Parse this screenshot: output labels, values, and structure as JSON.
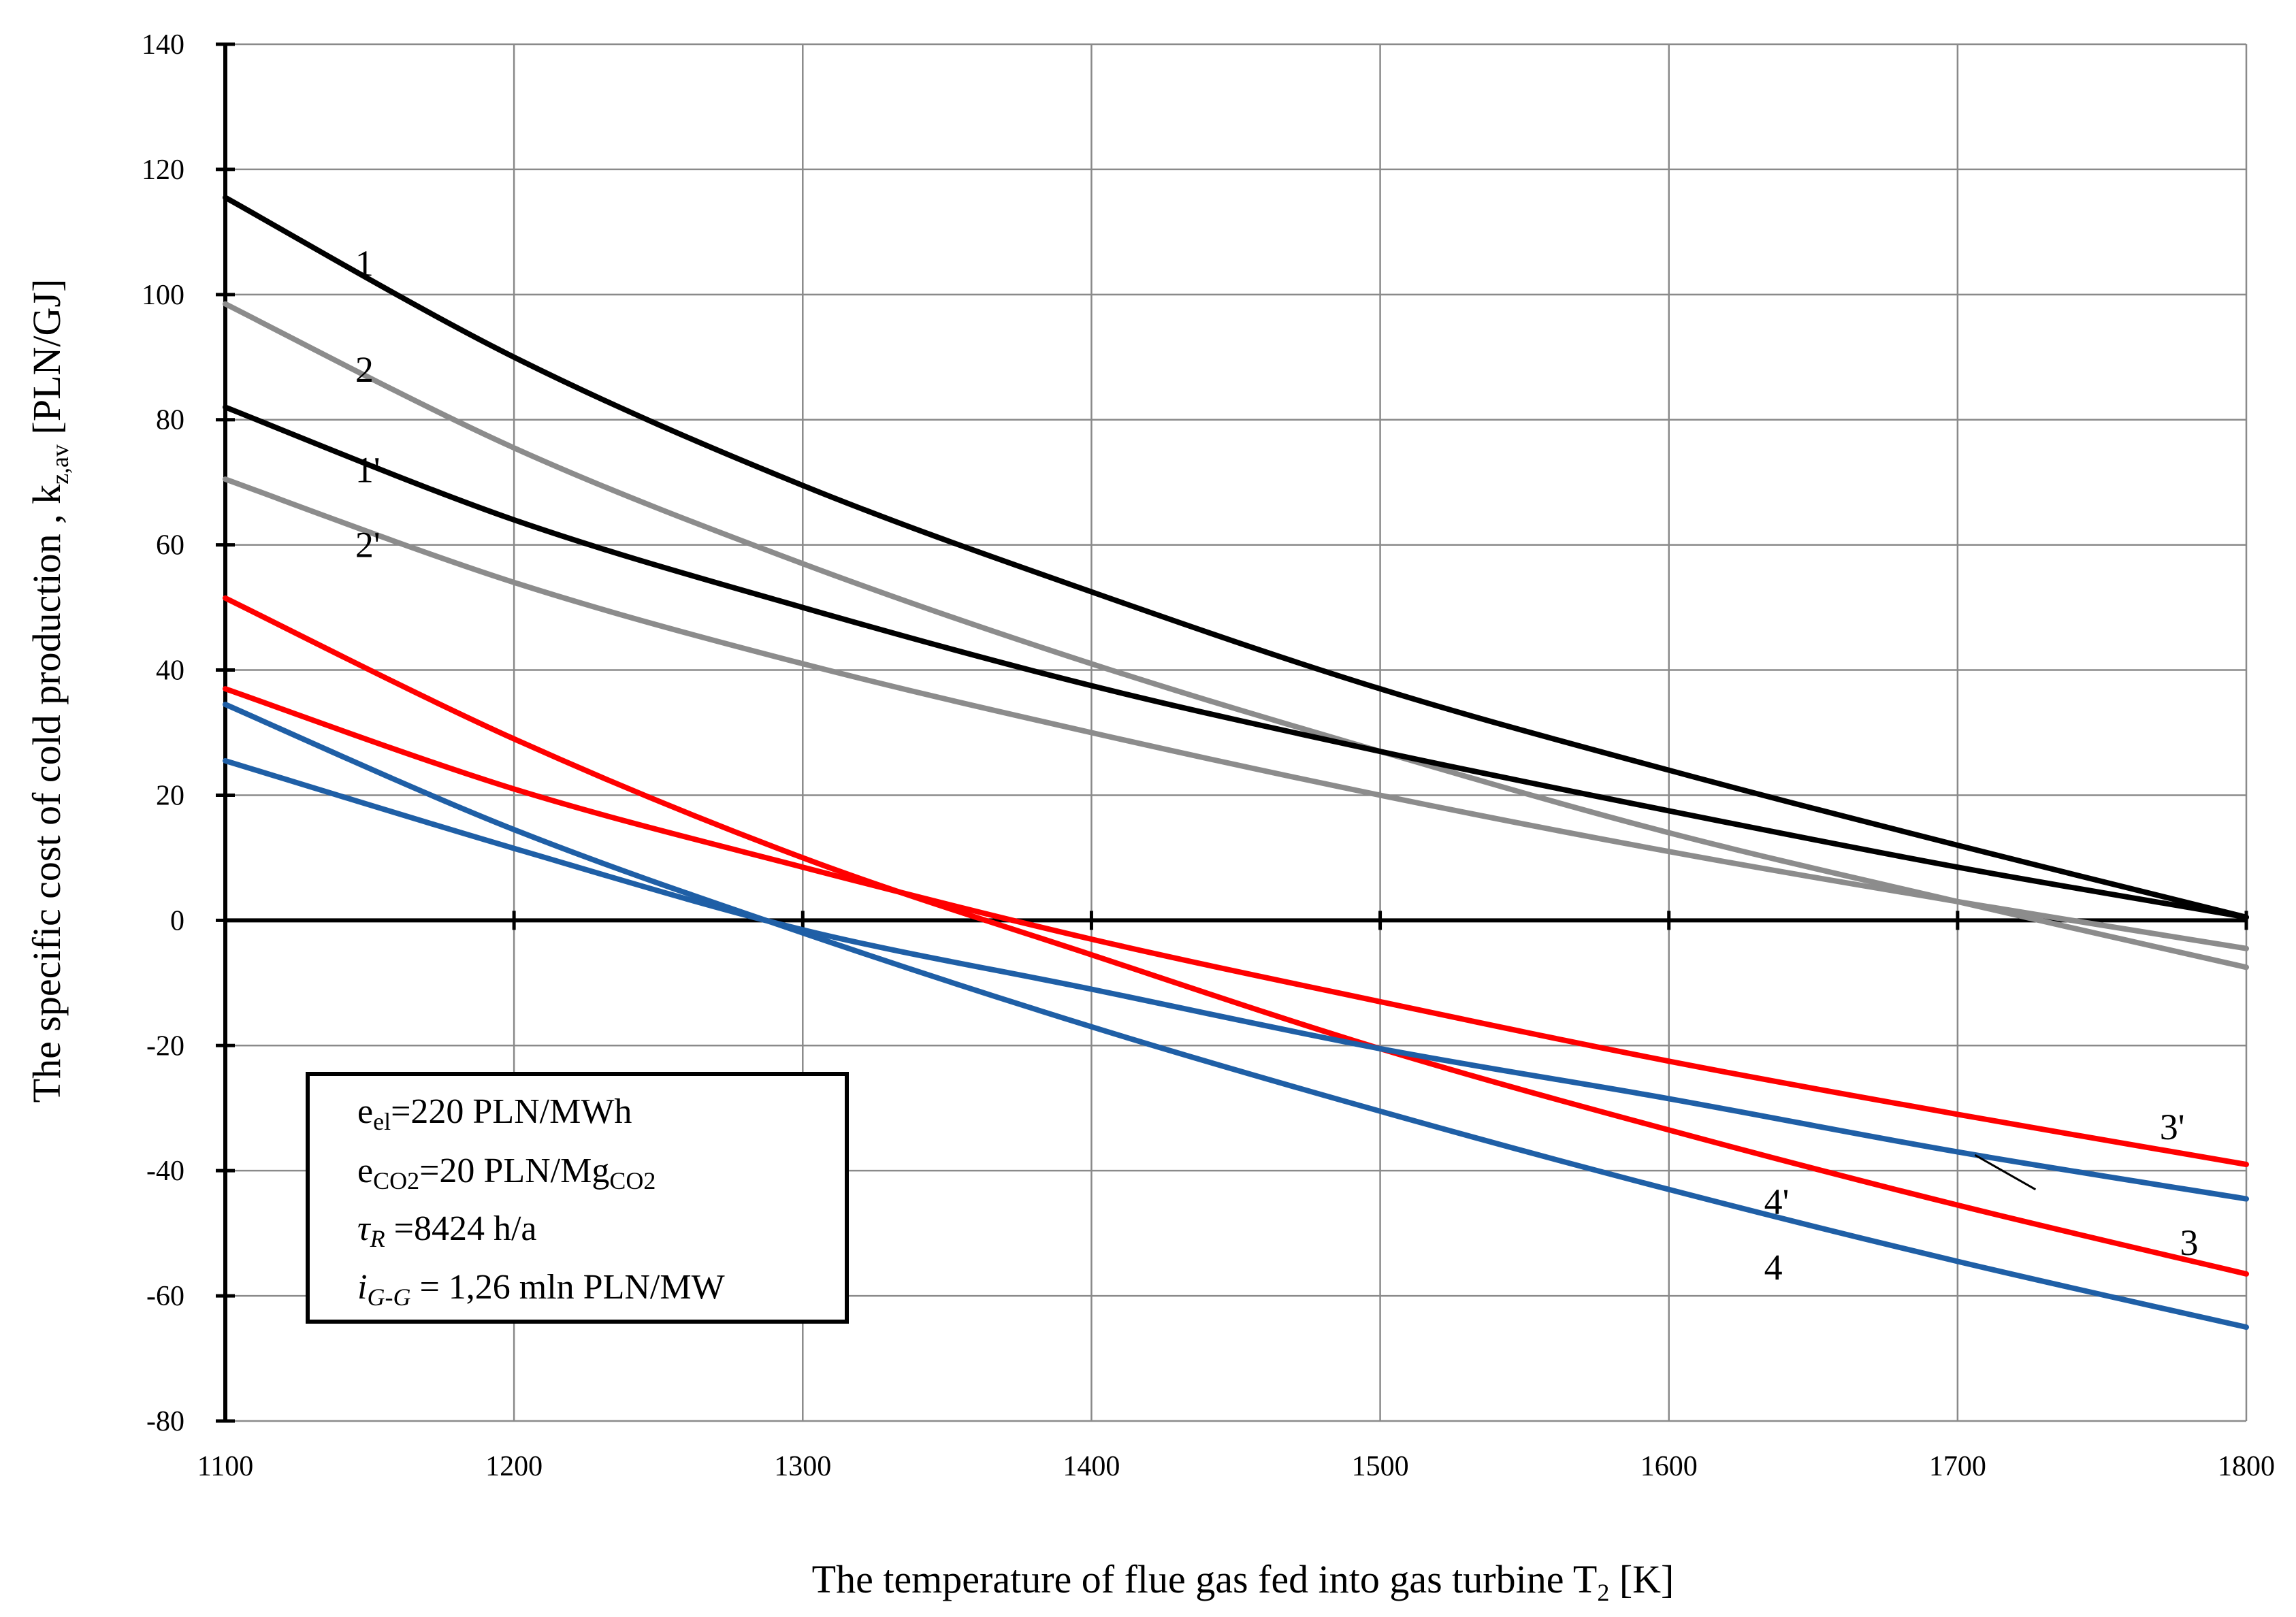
{
  "chart_data": {
    "type": "line",
    "title": "",
    "xlabel": "The temperature of flue gas fed into gas turbine T",
    "xlabel_sub": "2",
    "xlabel_unit": " [K]",
    "ylabel": "The specific cost of cold production , k",
    "ylabel_sub": "z,av",
    "ylabel_unit": " [PLN/GJ]",
    "xlim": [
      1100,
      1800
    ],
    "ylim": [
      -80,
      140
    ],
    "xticks": [
      1100,
      1200,
      1300,
      1400,
      1500,
      1600,
      1700,
      1800
    ],
    "yticks": [
      -80,
      -60,
      -40,
      -20,
      0,
      20,
      40,
      60,
      80,
      100,
      120,
      140
    ],
    "x": [
      1100,
      1200,
      1300,
      1400,
      1500,
      1600,
      1700,
      1800
    ],
    "grid": true,
    "series": [
      {
        "name": "1",
        "color": "#000000",
        "values": [
          115.5,
          90,
          69.5,
          52.5,
          37,
          24,
          12,
          0.5
        ]
      },
      {
        "name": "2",
        "color": "#8c8c8c",
        "values": [
          98.5,
          75.5,
          57,
          41,
          27,
          14,
          3,
          -7.5
        ]
      },
      {
        "name": "1'",
        "color": "#000000",
        "values": [
          82,
          64,
          50,
          37.5,
          27,
          17.5,
          8.5,
          0.5
        ]
      },
      {
        "name": "2'",
        "color": "#8c8c8c",
        "values": [
          70.5,
          54,
          41,
          30,
          20,
          11,
          3,
          -4.5
        ]
      },
      {
        "name": "3",
        "color": "#ff0000",
        "values": [
          51.5,
          29,
          10,
          -5.5,
          -20.5,
          -33.5,
          -45.5,
          -56.5
        ]
      },
      {
        "name": "3'",
        "color": "#ff0000",
        "values": [
          37,
          21,
          8.5,
          -3,
          -13,
          -22.5,
          -31,
          -39
        ]
      },
      {
        "name": "4",
        "color": "#1f5fa6",
        "values": [
          34.5,
          14.5,
          -2,
          -17,
          -30.5,
          -43,
          -54.5,
          -65
        ]
      },
      {
        "name": "4'",
        "color": "#1f5fa6",
        "values": [
          25.5,
          11.5,
          -1.5,
          -11,
          -20.5,
          -28.5,
          -37,
          -44.5
        ]
      }
    ],
    "curve_labels": [
      {
        "text": "1",
        "x": 1145,
        "y": 105
      },
      {
        "text": "2",
        "x": 1145,
        "y": 88
      },
      {
        "text": "1'",
        "x": 1145,
        "y": 72
      },
      {
        "text": "2'",
        "x": 1145,
        "y": 60
      },
      {
        "text": "3'",
        "x": 1770,
        "y": -33
      },
      {
        "text": "4'",
        "x": 1633,
        "y": -45
      },
      {
        "text": "3",
        "x": 1777,
        "y": -51.5
      },
      {
        "text": "4",
        "x": 1633,
        "y": -55.5
      }
    ],
    "leader_4prime": {
      "from": [
        1706,
        -37.5
      ],
      "to": [
        1727,
        -43
      ]
    },
    "annotation": [
      {
        "main": "e",
        "sub": "el",
        "rest": "=220 PLN/MWh",
        "sub2": ""
      },
      {
        "main": "e",
        "sub": "CO2",
        "rest": "=20 PLN/Mg",
        "sub2": "CO2"
      },
      {
        "main": "τ",
        "sub": "R",
        "rest": " =8424 h/a",
        "sub2": ""
      },
      {
        "main": "i",
        "sub": "G-G",
        "rest": " = 1,26 mln PLN/MW",
        "sub2": ""
      }
    ],
    "legend": "none"
  }
}
